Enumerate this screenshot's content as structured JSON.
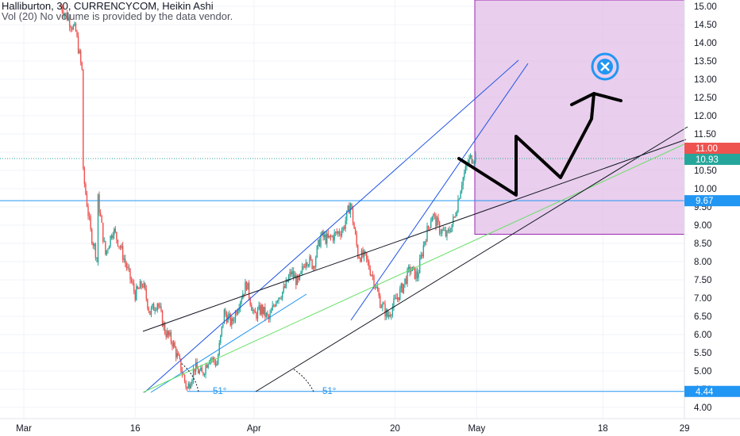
{
  "header": {
    "line1": "Halliburton, 30, CURRENCYCOM, Heikin Ashi",
    "line2": "Vol (20)  No volume is provided by the data vendor."
  },
  "colors": {
    "up": "#26a69a",
    "down": "#ef5350",
    "zone_fill": "#e1bee7",
    "zone_stroke": "#9c27b0",
    "blue_line": "#1e53e5",
    "green_line": "#66e066",
    "black_line": "#131722",
    "price_red": "#ef5350",
    "price_teal": "#26a69a",
    "level_blue": "#2196f3",
    "target_icon": "#2196f3"
  },
  "icons": [
    "close-circle-icon"
  ],
  "chart_data": {
    "type": "candlestick",
    "chart_style": "Heikin Ashi",
    "symbol": "Halliburton",
    "interval": "30",
    "exchange": "CURRENCYCOM",
    "ylim": [
      3.8,
      15.1
    ],
    "y_ticks": [
      "15.00",
      "14.50",
      "14.00",
      "13.50",
      "13.00",
      "12.50",
      "12.00",
      "11.50",
      "11.00",
      "10.50",
      "10.00",
      "9.50",
      "9.00",
      "8.50",
      "8.00",
      "7.50",
      "7.00",
      "6.50",
      "6.00",
      "5.50",
      "5.00",
      "4.50",
      "4.00"
    ],
    "x_ticks": [
      "Mar",
      "16",
      "Apr",
      "20",
      "May",
      "18",
      "29"
    ],
    "price_tags": [
      {
        "label": "11.00",
        "value": 11.0,
        "color": "red"
      },
      {
        "label": "10.93",
        "value": 10.93,
        "color": "teal"
      },
      {
        "label": "9.67",
        "value": 9.67,
        "color": "blue"
      },
      {
        "label": "4.44",
        "value": 4.44,
        "color": "blue"
      }
    ],
    "price_path": [
      [
        "Mar 6",
        15.0
      ],
      [
        "Mar 8",
        14.3
      ],
      [
        "Mar 9",
        13.0
      ],
      [
        "Mar 9",
        10.4
      ],
      [
        "Mar 10",
        8.8
      ],
      [
        "Mar 11",
        8.0
      ],
      [
        "Mar 11",
        9.7
      ],
      [
        "Mar 12",
        8.2
      ],
      [
        "Mar 13",
        8.9
      ],
      [
        "Mar 14",
        8.4
      ],
      [
        "Mar 16",
        7.1
      ],
      [
        "Mar 17",
        7.4
      ],
      [
        "Mar 18",
        6.6
      ],
      [
        "Mar 19",
        6.9
      ],
      [
        "Mar 20",
        6.1
      ],
      [
        "Mar 21",
        5.8
      ],
      [
        "Mar 22",
        5.2
      ],
      [
        "Mar 23",
        4.5
      ],
      [
        "Mar 24",
        5.1
      ],
      [
        "Mar 25",
        4.9
      ],
      [
        "Mar 26",
        5.4
      ],
      [
        "Mar 27",
        5.2
      ],
      [
        "Mar 28",
        6.6
      ],
      [
        "Mar 29",
        6.3
      ],
      [
        "Mar 30",
        6.9
      ],
      [
        "Mar 31",
        7.4
      ],
      [
        "Apr 1",
        6.5
      ],
      [
        "Apr 2",
        6.7
      ],
      [
        "Apr 3",
        6.4
      ],
      [
        "Apr 4",
        7.0
      ],
      [
        "Apr 5",
        7.2
      ],
      [
        "Apr 6",
        7.7
      ],
      [
        "Apr 7",
        7.4
      ],
      [
        "Apr 8",
        8.1
      ],
      [
        "Apr 9",
        7.9
      ],
      [
        "Apr 10",
        8.7
      ],
      [
        "Apr 11",
        8.6
      ],
      [
        "Apr 13",
        8.9
      ],
      [
        "Apr 14",
        9.6
      ],
      [
        "Apr 15",
        8.2
      ],
      [
        "Apr 16",
        8.1
      ],
      [
        "Apr 17",
        7.6
      ],
      [
        "Apr 18",
        6.9
      ],
      [
        "Apr 19",
        6.5
      ],
      [
        "Apr 20",
        6.9
      ],
      [
        "Apr 21",
        7.3
      ],
      [
        "Apr 22",
        7.8
      ],
      [
        "Apr 23",
        7.6
      ],
      [
        "Apr 24",
        8.6
      ],
      [
        "Apr 25",
        9.3
      ],
      [
        "Apr 26",
        8.9
      ],
      [
        "Apr 27",
        8.7
      ],
      [
        "Apr 28",
        9.2
      ],
      [
        "Apr 29",
        10.2
      ],
      [
        "Apr 30",
        10.8
      ],
      [
        "May 1",
        10.93
      ]
    ],
    "drawings": {
      "target_zone": {
        "x_start": "Apr 30",
        "x_end": "Jun 1",
        "y_low": 8.75,
        "y_high": 15.1
      },
      "horizontal_levels": [
        9.67,
        4.44
      ],
      "fan_angles": [
        "51°",
        "51°"
      ],
      "projected_path": [
        [
          "May 1",
          10.85
        ],
        [
          "May 5",
          9.6
        ],
        [
          "May 8",
          11.2
        ],
        [
          "May 11",
          10.0
        ],
        [
          "May 15",
          12.6
        ]
      ]
    }
  }
}
